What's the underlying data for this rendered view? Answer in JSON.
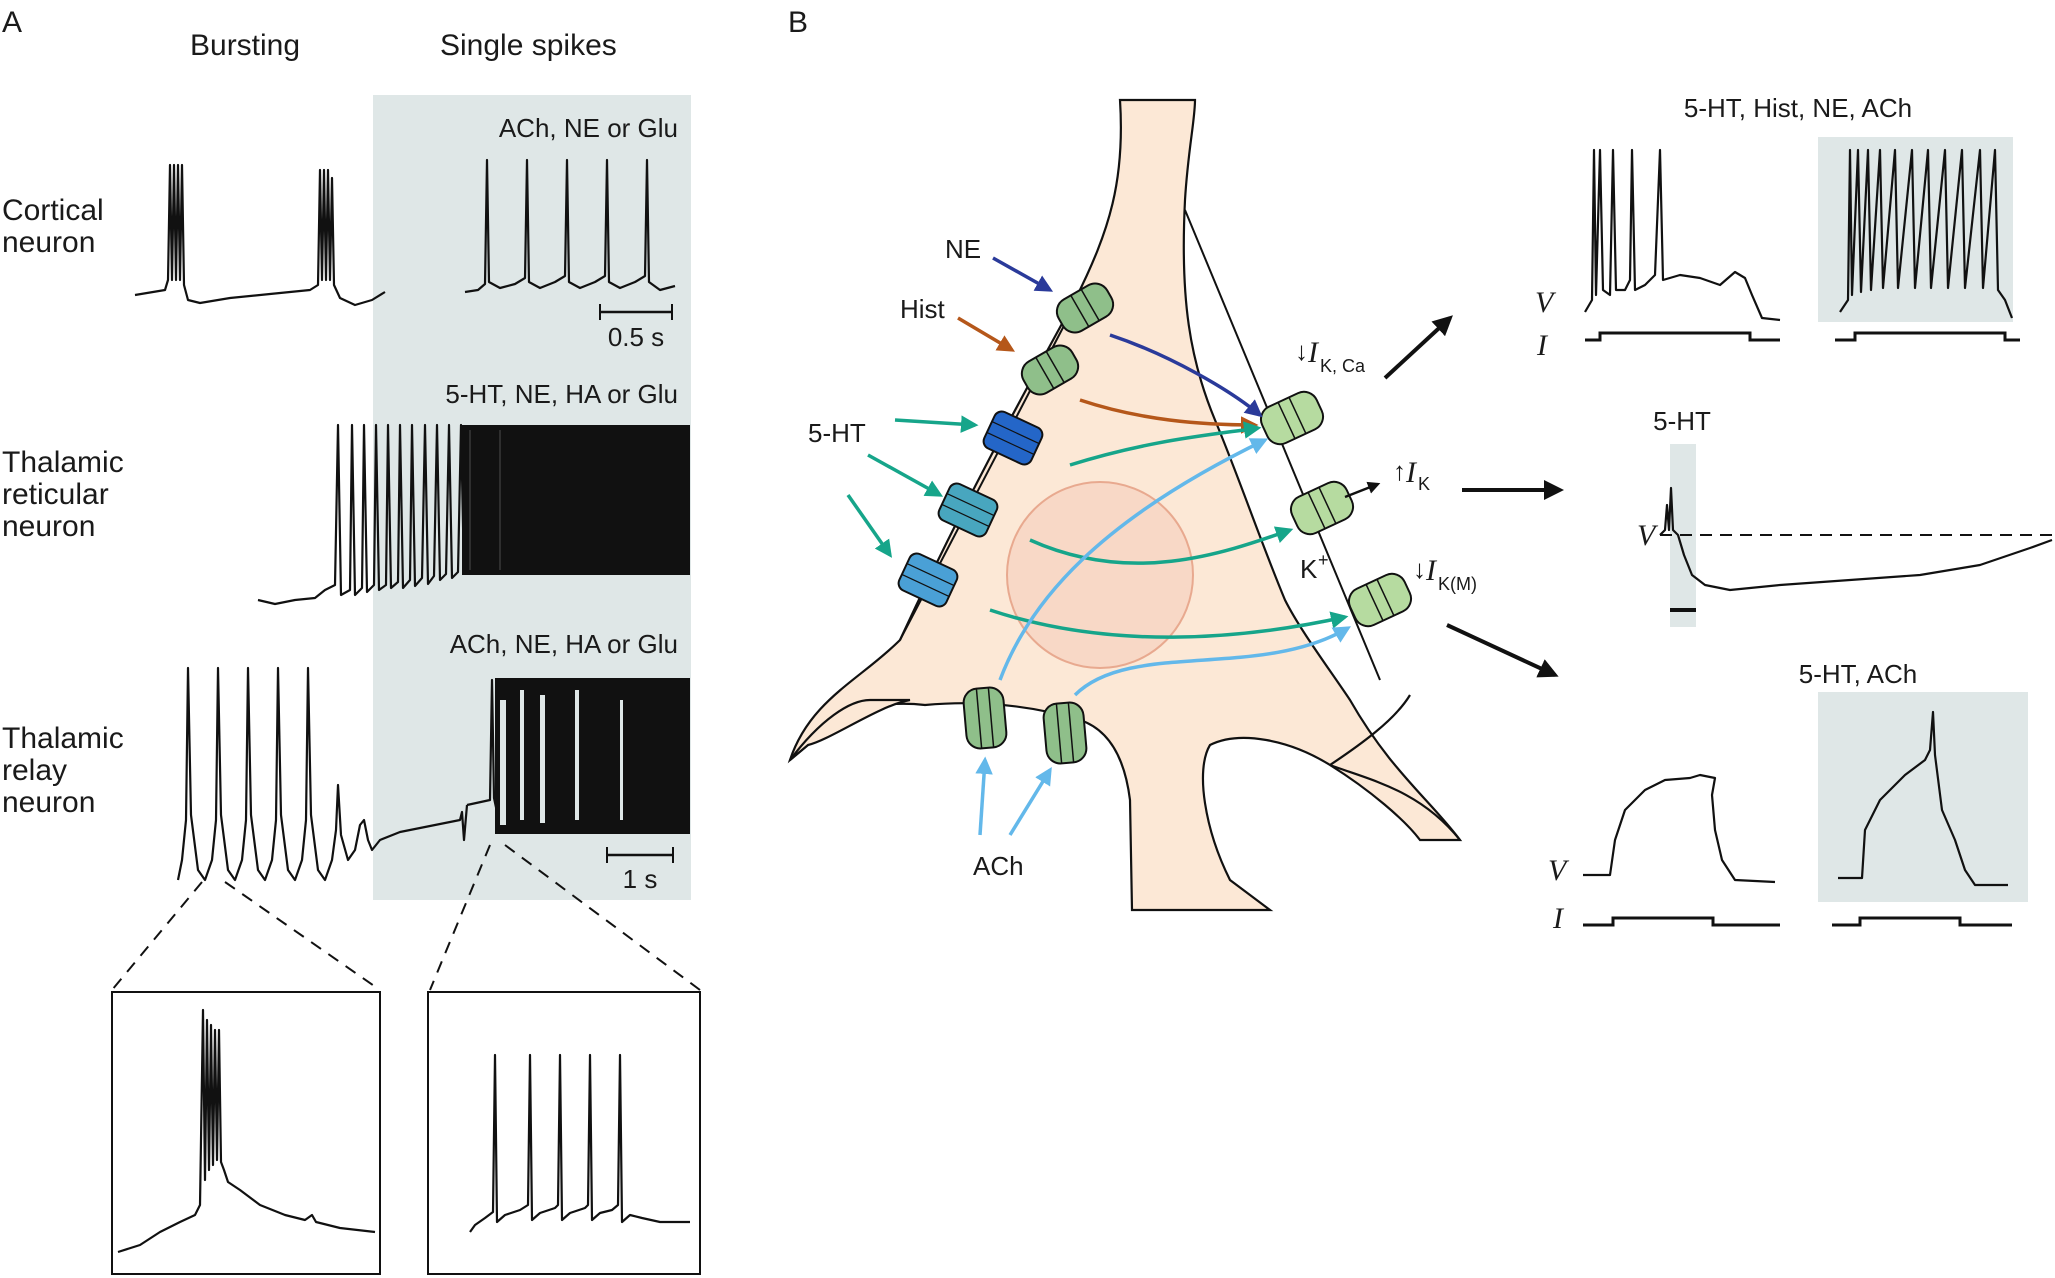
{
  "panelA": {
    "label": "A",
    "col_bursting": "Bursting",
    "col_single": "Single spikes",
    "rows": [
      {
        "name": "Cortical\nneuron",
        "lines": [
          "Cortical",
          "neuron"
        ],
        "transmitters": "ACh,  NE or Glu",
        "scale": "0.5 s"
      },
      {
        "name": "Thalamic\nreticular\nneuron",
        "lines": [
          "Thalamic",
          "reticular",
          "neuron"
        ],
        "transmitters": "5-HT, NE, HA or Glu",
        "scale": ""
      },
      {
        "name": "Thalamic\nrelay\nneuron",
        "lines": [
          "Thalamic",
          "relay",
          "neuron"
        ],
        "transmitters": "ACh, NE, HA or Glu",
        "scale": "1 s"
      }
    ]
  },
  "panelB": {
    "label": "B",
    "transmitters": {
      "ne": "NE",
      "hist": "Hist",
      "ht": "5-HT",
      "ach": "ACh"
    },
    "currents": {
      "ikca_arrow": "↓",
      "ikca_i": "I",
      "ikca_sub": "K, Ca",
      "ik_arrow": "↑",
      "ik_i": "I",
      "ik_sub": "K",
      "ikm_arrow": "↓",
      "ikm_i": "I",
      "ikm_sub": "K(M)",
      "k_ion": "K",
      "k_sup": "+"
    },
    "recordings": {
      "top_label": "5-HT, Hist, NE, ACh",
      "middle_label": "5-HT",
      "bottom_label": "5-HT, ACh",
      "v": "V",
      "i": "I"
    }
  },
  "colors": {
    "shade": "#dfe7e7",
    "cell": "#fce8d6",
    "channel_green": "#8fbf8a",
    "channel_light": "#b6dba0",
    "blue_dark": "#2a3a9a",
    "brown": "#b5571a",
    "teal": "#16a58a",
    "sky": "#63b8ea",
    "royal": "#2466c8",
    "ltblue": "#4aa0d6"
  }
}
